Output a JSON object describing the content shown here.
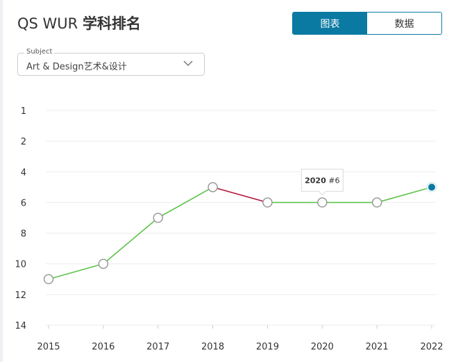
{
  "header": {
    "title_prefix": "QS WUR ",
    "title_bold": "学科排名"
  },
  "view_toggle": {
    "chart_label": "图表",
    "data_label": "数据",
    "selected": "图表"
  },
  "subject_select": {
    "legend": "Subject",
    "value": "Art & Design艺术&设计"
  },
  "colors": {
    "accent": "#0a7aa3",
    "line_up": "#5cc34a",
    "line_down": "#b5123a",
    "marker_fill": "#ffffff",
    "marker_stroke": "#9a9a9a",
    "gridline": "#ececec"
  },
  "tooltip": {
    "year": "2020",
    "rank": "#6"
  },
  "icons": {
    "dropdown": "chevron-down-icon"
  },
  "chart_data": {
    "type": "line",
    "x": [
      2015,
      2016,
      2017,
      2018,
      2019,
      2020,
      2021,
      2022
    ],
    "y": [
      11,
      10,
      7,
      5,
      6,
      6,
      6,
      5
    ],
    "y_ticks": [
      1,
      2,
      4,
      6,
      8,
      10,
      12,
      14
    ],
    "ylim": [
      14,
      1
    ],
    "y_inverted": true,
    "highlighted_point": 2022,
    "title": "",
    "xlabel": "",
    "ylabel": "",
    "grid": true
  }
}
